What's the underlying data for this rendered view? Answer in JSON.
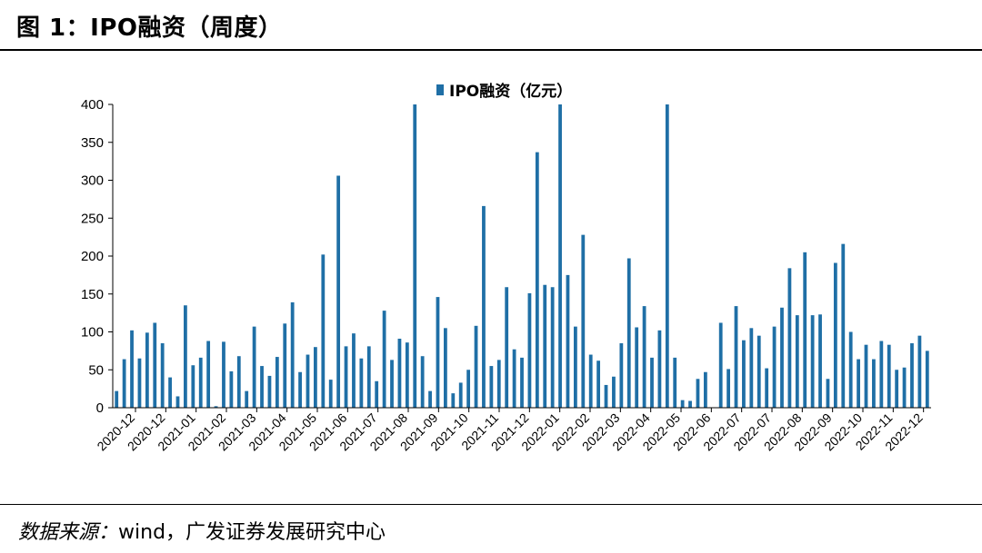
{
  "figure": {
    "title": "图 1：IPO融资（周度）",
    "source_label": "数据来源：",
    "source_text": "wind，广发证券发展研究中心"
  },
  "colors": {
    "bar": "#1f6fa6",
    "axis": "#000000"
  },
  "chart_data": {
    "type": "bar",
    "title": "",
    "legend": "IPO融资（亿元）",
    "legend_position": "top-center",
    "xlabel": "",
    "ylabel": "",
    "ylim": [
      0,
      400
    ],
    "yticks": [
      0,
      50,
      100,
      150,
      200,
      250,
      300,
      350,
      400
    ],
    "grid": false,
    "x_tick_labels": [
      "2020-12",
      "2020-12",
      "2021-01",
      "2021-02",
      "2021-03",
      "2021-04",
      "2021-05",
      "2021-06",
      "2021-07",
      "2021-08",
      "2021-09",
      "2021-10",
      "2021-11",
      "2021-12",
      "2022-01",
      "2022-02",
      "2022-03",
      "2022-04",
      "2022-05",
      "2022-06",
      "2022-07",
      "2022-07",
      "2022-08",
      "2022-09",
      "2022-10",
      "2022-11",
      "2022-12"
    ],
    "values": [
      22,
      64,
      102,
      65,
      99,
      112,
      85,
      40,
      15,
      135,
      56,
      66,
      88,
      2,
      87,
      48,
      68,
      22,
      107,
      55,
      42,
      67,
      111,
      139,
      47,
      70,
      80,
      202,
      37,
      306,
      81,
      98,
      65,
      81,
      35,
      128,
      63,
      91,
      86,
      400,
      68,
      22,
      146,
      105,
      19,
      33,
      50,
      108,
      266,
      55,
      63,
      159,
      77,
      66,
      151,
      337,
      162,
      159,
      400,
      175,
      107,
      228,
      70,
      62,
      30,
      41,
      85,
      197,
      106,
      134,
      66,
      102,
      400,
      66,
      10,
      9,
      38,
      47,
      0,
      112,
      51,
      134,
      89,
      105,
      95,
      52,
      107,
      132,
      184,
      122,
      205,
      122,
      123,
      38,
      191,
      216,
      100,
      64,
      83,
      64,
      88,
      83,
      50,
      53,
      85,
      95,
      75
    ]
  }
}
